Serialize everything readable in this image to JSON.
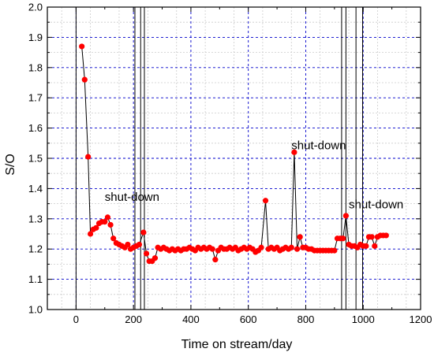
{
  "chart_data": {
    "type": "scatter",
    "xlabel": "Time on stream/day",
    "ylabel": "S/O",
    "xlim": [
      -100,
      1200
    ],
    "ylim": [
      1.0,
      2.0
    ],
    "xticks": [
      "0",
      "200",
      "400",
      "600",
      "800",
      "1000",
      "1200"
    ],
    "yticks": [
      "1.0",
      "1.1",
      "1.2",
      "1.3",
      "1.4",
      "1.5",
      "1.6",
      "1.7",
      "1.8",
      "1.9",
      "2.0"
    ],
    "grid": true,
    "colors": {
      "points": "#ff0000",
      "line": "#000000",
      "grid": "#0000cc",
      "minor_grid": "#cccccc"
    },
    "series": [
      {
        "x": [
          20,
          30,
          42,
          50,
          60,
          70,
          80,
          90,
          100,
          110,
          120,
          130,
          140,
          150,
          160,
          170,
          180,
          190,
          200,
          210,
          220,
          235,
          245,
          255,
          265,
          275,
          285,
          295,
          305,
          315,
          325,
          335,
          345,
          355,
          365,
          375,
          385,
          395,
          405,
          415,
          425,
          435,
          445,
          455,
          465,
          475,
          485,
          495,
          505,
          515,
          525,
          535,
          545,
          555,
          565,
          575,
          585,
          595,
          605,
          615,
          625,
          635,
          645,
          660,
          670,
          680,
          690,
          700,
          710,
          720,
          730,
          740,
          750,
          760,
          770,
          780,
          790,
          800,
          810,
          820,
          830,
          840,
          850,
          860,
          870,
          880,
          890,
          900,
          910,
          920,
          930,
          940,
          950,
          960,
          970,
          980,
          990,
          1000,
          1010,
          1020,
          1030,
          1040,
          1050,
          1060,
          1070,
          1080
        ],
        "y": [
          1.87,
          1.76,
          1.505,
          1.25,
          1.265,
          1.27,
          1.285,
          1.29,
          1.29,
          1.305,
          1.28,
          1.235,
          1.22,
          1.215,
          1.21,
          1.205,
          1.215,
          1.2,
          1.205,
          1.21,
          1.215,
          1.255,
          1.185,
          1.16,
          1.16,
          1.17,
          1.205,
          1.2,
          1.205,
          1.2,
          1.195,
          1.2,
          1.195,
          1.2,
          1.195,
          1.2,
          1.2,
          1.205,
          1.2,
          1.195,
          1.205,
          1.2,
          1.205,
          1.2,
          1.205,
          1.2,
          1.165,
          1.195,
          1.205,
          1.2,
          1.2,
          1.205,
          1.2,
          1.205,
          1.195,
          1.2,
          1.205,
          1.2,
          1.205,
          1.2,
          1.19,
          1.195,
          1.205,
          1.36,
          1.2,
          1.205,
          1.2,
          1.205,
          1.195,
          1.2,
          1.205,
          1.2,
          1.205,
          1.52,
          1.2,
          1.24,
          1.205,
          1.205,
          1.2,
          1.2,
          1.195,
          1.195,
          1.195,
          1.195,
          1.195,
          1.195,
          1.195,
          1.195,
          1.235,
          1.235,
          1.235,
          1.31,
          1.215,
          1.21,
          1.21,
          1.205,
          1.215,
          1.21,
          1.21,
          1.24,
          1.24,
          1.21,
          1.24,
          1.245,
          1.245,
          1.245
        ]
      }
    ],
    "vertical_lines_x": [
      0,
      205,
      225,
      238,
      925,
      940,
      975,
      998
    ],
    "annotations": [
      {
        "text": "shut-down",
        "x": 100,
        "y": 1.36
      },
      {
        "text": "shut-down",
        "x": 750,
        "y": 1.53
      },
      {
        "text": "shut-down",
        "x": 950,
        "y": 1.335
      }
    ]
  }
}
